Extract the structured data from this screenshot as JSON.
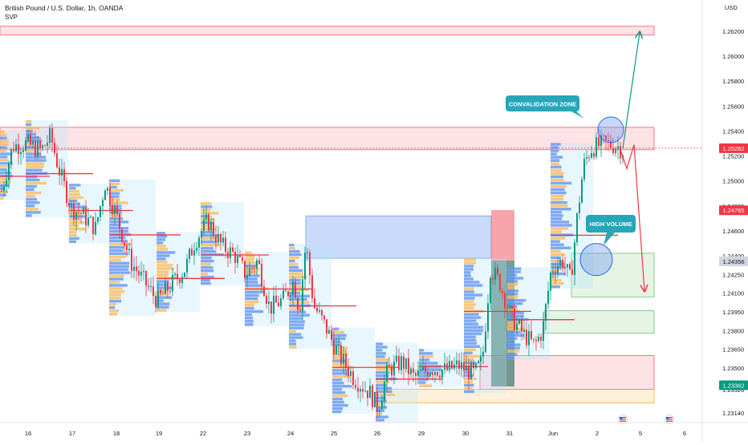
{
  "chart_data": {
    "type": "candlestick",
    "title": "British Pound / U.S. Dollar, 1h, OANDA",
    "subtitle": "SVP",
    "currency": "USD",
    "x_ticks": [
      "16",
      "17",
      "18",
      "19",
      "22",
      "23",
      "24",
      "25",
      "26",
      "29",
      "30",
      "31",
      "Jun",
      "2",
      "5",
      "6"
    ],
    "y_ticks": [
      "1.26200",
      "1.26000",
      "1.25800",
      "1.25600",
      "1.25400",
      "1.25200",
      "1.25000",
      "1.24800",
      "1.24600",
      "1.24400",
      "1.24250",
      "1.24100",
      "1.23950",
      "1.23800",
      "1.23650",
      "1.23500",
      "1.23326",
      "1.23140"
    ],
    "y_range": [
      1.2302,
      1.2644
    ],
    "price_badges": [
      {
        "value": 1.25262,
        "label": "1.25262",
        "color": "#f23645"
      },
      {
        "value": 1.24765,
        "label": "1.24765",
        "color": "#f23645"
      },
      {
        "value": 1.24356,
        "label": "1.24356",
        "color": "#d1d4dc"
      },
      {
        "value": 1.23362,
        "label": "1.23362",
        "color": "#089981"
      }
    ],
    "callouts": [
      {
        "label": "CONVALIDATION ZONE"
      },
      {
        "label": "HIGH VOLUME"
      }
    ],
    "zones": [
      {
        "kind": "resistance",
        "y_top": 1.2624,
        "y_bottom": 1.2617,
        "color": "#f23645"
      },
      {
        "kind": "resistance",
        "y_top": 1.2543,
        "y_bottom": 1.2525,
        "color": "#f23645"
      },
      {
        "kind": "imbalance",
        "y_top": 1.2472,
        "y_bottom": 1.2438,
        "color": "#5b8def"
      },
      {
        "kind": "target",
        "y_top": 1.2442,
        "y_bottom": 1.2407,
        "color": "#4caf50"
      },
      {
        "kind": "target",
        "y_top": 1.2396,
        "y_bottom": 1.2378,
        "color": "#4caf50"
      },
      {
        "kind": "support",
        "y_top": 1.236,
        "y_bottom": 1.2333,
        "color": "#f23645"
      },
      {
        "kind": "support",
        "y_top": 1.2333,
        "y_bottom": 1.2322,
        "color": "#ff9800"
      }
    ],
    "colors": {
      "up": "#089981",
      "down": "#f23645",
      "volume_blue": "#2962ff",
      "volume_yellow": "#ffb74d"
    },
    "grid": false,
    "events_icon": "flag-us-icon"
  }
}
